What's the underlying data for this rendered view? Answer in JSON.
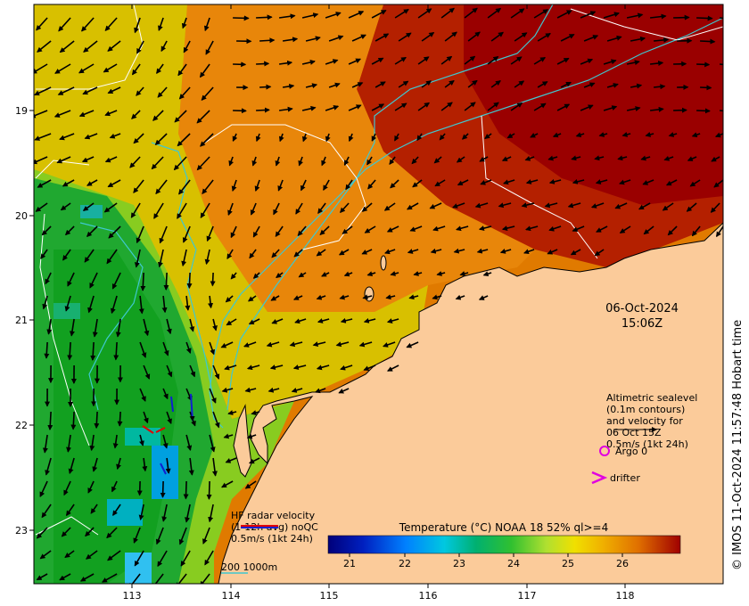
{
  "date_label": "06-Oct-2024",
  "time_label": "15:06Z",
  "altimetry_legend": [
    "Altimetric sealevel",
    "(0.1m contours)",
    "and velocity for",
    "06 Oct 15Z",
    "0.5m/s (1kt 24h)"
  ],
  "argo_label": "Argo 0",
  "drifter_label": "drifter",
  "hf_radar_legend": [
    "HF radar velocity",
    "(1-12h avg) noQC",
    "0.5m/s (1kt 24h)"
  ],
  "depth_scale_label": "200  1000m",
  "colorbar_title": "Temperature (°C) NOAA 18 52% ql>=4",
  "colorbar_ticks": [
    "21",
    "22",
    "23",
    "24",
    "25",
    "26"
  ],
  "x_ticks": [
    "113",
    "114",
    "115",
    "116",
    "117",
    "118"
  ],
  "y_ticks": [
    "19",
    "20",
    "21",
    "22",
    "23"
  ],
  "credit": "© IMOS 11-Oct-2024 11:57:48 Hobart time",
  "colors": {
    "land": "#fbcb9a",
    "contour_200m": "#3fc8d0",
    "hf_arrow_red": "#e00000",
    "hf_arrow_blue": "#1020d0",
    "argo_marker": "#e000e0",
    "drifter_marker": "#e000e0"
  },
  "icons": {
    "argo": "magenta-circle",
    "drifter": "magenta-chevron"
  }
}
